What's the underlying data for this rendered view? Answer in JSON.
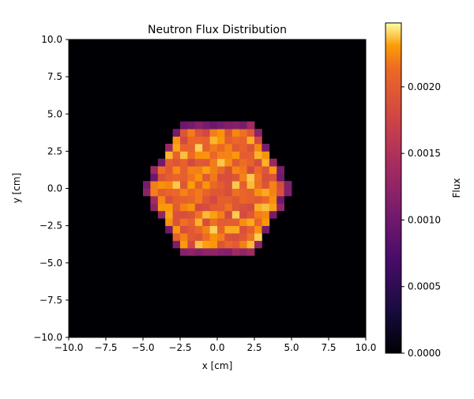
{
  "chart_data": {
    "type": "heatmap",
    "title": "Neutron Flux Distribution",
    "xlabel": "x [cm]",
    "ylabel": "y [cm]",
    "xlim": [
      -10,
      10
    ],
    "ylim": [
      -10,
      10
    ],
    "x_ticks": [
      "−10.0",
      "−7.5",
      "−5.0",
      "−2.5",
      "0.0",
      "2.5",
      "5.0",
      "7.5",
      "10.0"
    ],
    "y_ticks": [
      "−10.0",
      "−7.5",
      "−5.0",
      "−2.5",
      "0.0",
      "2.5",
      "5.0",
      "7.5",
      "10.0"
    ],
    "grid": false,
    "colormap": "inferno",
    "colorbar": {
      "label": "Flux",
      "range": [
        0,
        0.00248
      ],
      "ticks": [
        "0.0000",
        "0.0005",
        "0.0010",
        "0.0015",
        "0.0020"
      ],
      "tick_values": [
        0,
        0.0005,
        0.001,
        0.0015,
        0.002
      ]
    },
    "region": {
      "shape": "hexagon (flat top / bottom)",
      "center": [
        0,
        0
      ],
      "circumradius_cm": 5.0,
      "interior_flux_range": [
        0.0018,
        0.0024
      ],
      "edge_flux_range": [
        0.0009,
        0.0014
      ],
      "outside_flux": 0
    }
  }
}
